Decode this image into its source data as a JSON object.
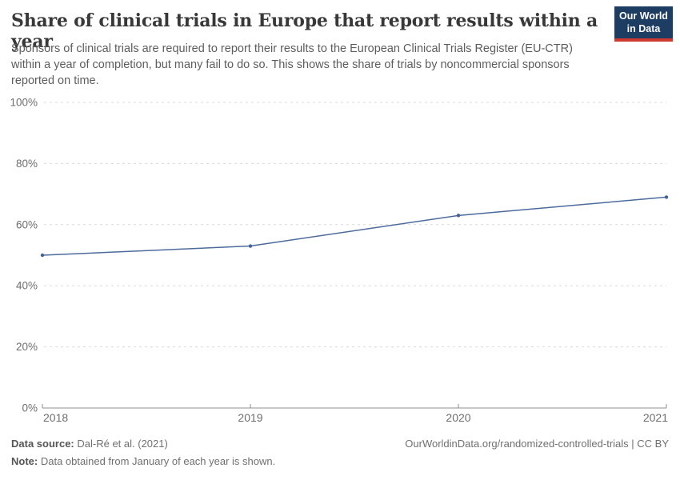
{
  "header": {
    "title": "Share of clinical trials in Europe that report results within a year",
    "subtitle": "Sponsors of clinical trials are required to report their results to the European Clinical Trials Register (EU-CTR) within a year of completion, but many fail to do so. This shows the share of trials by noncommercial sponsors reported on time.",
    "logo_line1": "Our World",
    "logo_line2": "in Data"
  },
  "chart_data": {
    "type": "line",
    "title": "Share of clinical trials in Europe that report results within a year",
    "x": [
      "2018",
      "2019",
      "2020",
      "2021"
    ],
    "series": [
      {
        "name": "Share of trials reported on time",
        "values": [
          50,
          53,
          63,
          69
        ]
      }
    ],
    "ylim": [
      0,
      100
    ],
    "yticks": [
      0,
      20,
      40,
      60,
      80,
      100
    ],
    "ytick_suffix": "%",
    "grid": "horizontal-dashed",
    "legend": "none",
    "xlabel": "",
    "ylabel": ""
  },
  "footer": {
    "source_label": "Data source:",
    "source_value": "Dal-Ré et al. (2021)",
    "attribution": "OurWorldinData.org/randomized-controlled-trials | CC BY",
    "note_label": "Note:",
    "note_value": "Data obtained from January of each year is shown."
  },
  "colors": {
    "line": "#4c6a9c",
    "point": "#446192",
    "grid": "#dadada",
    "axis": "#8f8f8f",
    "tick_label": "#6e6e6e",
    "logo_bg": "#1d3d63",
    "logo_stripe": "#d13b2f",
    "title_text": "#383838"
  }
}
